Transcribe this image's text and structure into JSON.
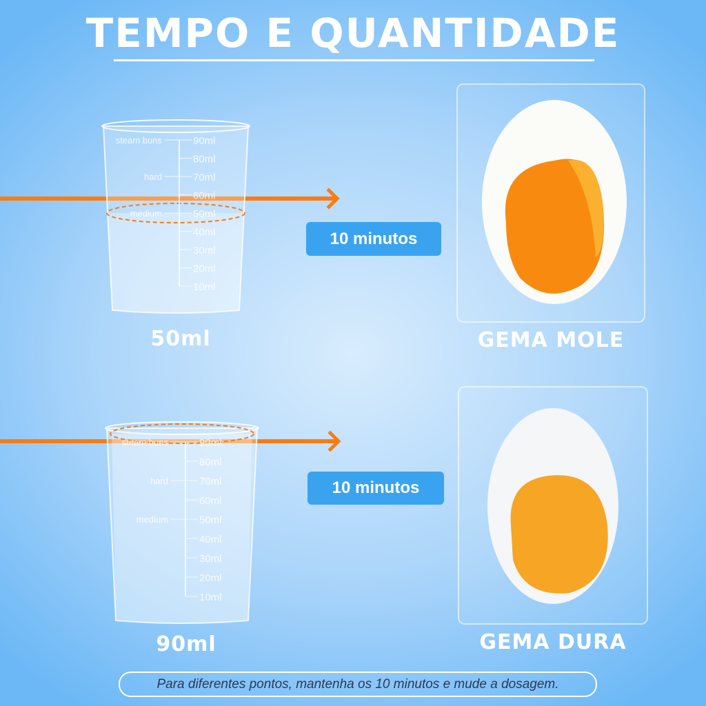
{
  "title": "TEMPO E QUANTIDADE",
  "cup_scale": {
    "marks": [
      "90ml",
      "80ml",
      "70ml",
      "60ml",
      "50ml",
      "40ml",
      "30ml",
      "20ml",
      "10ml"
    ],
    "levels": [
      "steam buns",
      "hard",
      "medium"
    ]
  },
  "rows": [
    {
      "amount": "50ml",
      "time": "10 minutos",
      "result": "GEMA MOLE",
      "fill_ml": 50
    },
    {
      "amount": "90ml",
      "time": "10 minutos",
      "result": "GEMA DURA",
      "fill_ml": 90
    }
  ],
  "footer": "Para diferentes pontos, mantenha os 10 minutos e mude a dosagem.",
  "colors": {
    "accent": "#f97c12",
    "badge": "#3aa3ef",
    "yolk_soft": "#f98a10",
    "yolk_hard": "#f7a524"
  }
}
